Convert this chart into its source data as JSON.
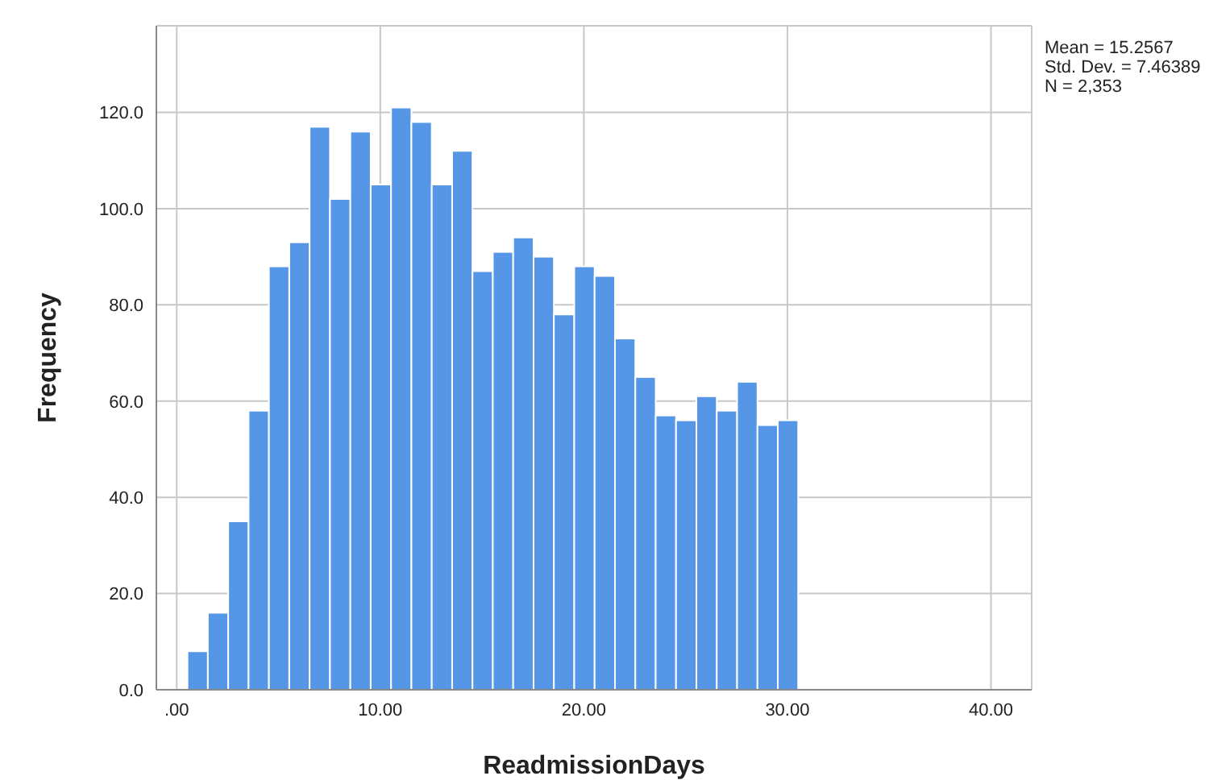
{
  "chart_data": {
    "type": "histogram",
    "xlabel": "ReadmissionDays",
    "ylabel": "Frequency",
    "bins": [
      0.5,
      1.5,
      2.5,
      3.5,
      4.5,
      5.5,
      6.5,
      7.5,
      8.5,
      9.5,
      10.5,
      11.5,
      12.5,
      13.5,
      14.5,
      15.5,
      16.5,
      17.5,
      18.5,
      19.5,
      20.5,
      21.5,
      22.5,
      23.5,
      24.5,
      25.5,
      26.5,
      27.5,
      28.5,
      29.5,
      30.5
    ],
    "values": [
      8,
      16,
      35,
      58,
      88,
      93,
      117,
      102,
      116,
      105,
      121,
      118,
      105,
      112,
      87,
      91,
      94,
      90,
      78,
      88,
      86,
      73,
      65,
      57,
      56,
      61,
      58,
      64,
      55,
      56
    ],
    "color": "#5596e6",
    "xlim": [
      -1,
      42
    ],
    "xticks": [
      {
        "value": 0,
        "label": ".00"
      },
      {
        "value": 10,
        "label": "10.00"
      },
      {
        "value": 20,
        "label": "20.00"
      },
      {
        "value": 30,
        "label": "30.00"
      },
      {
        "value": 40,
        "label": "40.00"
      }
    ],
    "ylim": [
      0,
      138
    ],
    "yticks": [
      {
        "value": 0,
        "label": "0.0"
      },
      {
        "value": 20,
        "label": "20.0"
      },
      {
        "value": 40,
        "label": "40.0"
      },
      {
        "value": 60,
        "label": "60.0"
      },
      {
        "value": 80,
        "label": "80.0"
      },
      {
        "value": 100,
        "label": "100.0"
      },
      {
        "value": 120,
        "label": "120.0"
      }
    ],
    "grid": true,
    "annotations": [
      "Mean = 15.2567",
      "Std. Dev. = 7.46389",
      "N = 2,353"
    ]
  }
}
